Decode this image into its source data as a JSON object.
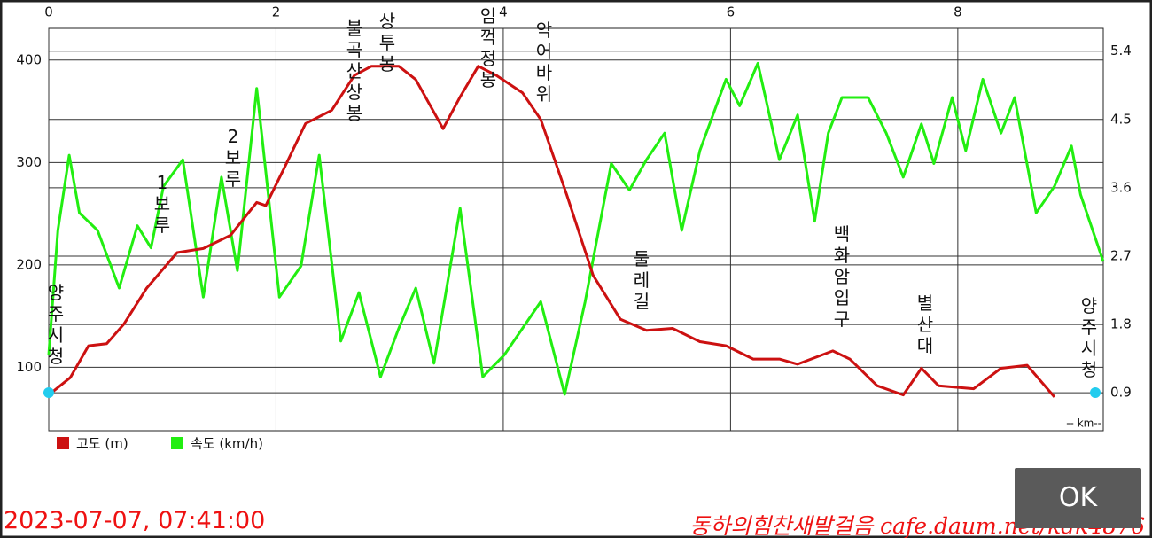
{
  "chart_data": {
    "type": "line",
    "series": [
      {
        "name": "고도 (m)",
        "color": "#cc1111",
        "axis": "y",
        "x": [
          0,
          0.19,
          0.35,
          0.51,
          0.66,
          0.86,
          1.13,
          1.36,
          1.6,
          1.83,
          1.91,
          2.07,
          2.26,
          2.49,
          2.69,
          2.84,
          3.08,
          3.23,
          3.47,
          3.62,
          3.78,
          3.94,
          4.17,
          4.33,
          4.56,
          4.79,
          5.03,
          5.26,
          5.49,
          5.73,
          5.96,
          6.2,
          6.43,
          6.59,
          6.9,
          7.05,
          7.29,
          7.52,
          7.68,
          7.83,
          8.14,
          8.38,
          8.61,
          8.85
        ],
        "values": [
          73,
          90,
          121,
          123,
          142,
          177,
          212,
          216,
          229,
          261,
          258,
          294,
          338,
          351,
          385,
          394,
          394,
          381,
          333,
          364,
          394,
          385,
          368,
          342,
          268,
          190,
          147,
          136,
          138,
          125,
          121,
          108,
          108,
          103,
          116,
          108,
          82,
          73,
          99,
          82,
          79,
          99,
          102,
          71
        ]
      },
      {
        "name": "속도 (km/h)",
        "color": "#22ee11",
        "axis": "y2",
        "x": [
          0,
          0.08,
          0.18,
          0.27,
          0.43,
          0.62,
          0.78,
          0.9,
          1.01,
          1.18,
          1.36,
          1.52,
          1.66,
          1.83,
          2.03,
          2.22,
          2.38,
          2.57,
          2.73,
          2.92,
          3.08,
          3.23,
          3.39,
          3.62,
          3.82,
          4.01,
          4.17,
          4.33,
          4.54,
          4.72,
          4.95,
          5.11,
          5.26,
          5.42,
          5.57,
          5.73,
          5.96,
          6.08,
          6.24,
          6.43,
          6.59,
          6.74,
          6.86,
          6.98,
          7.21,
          7.37,
          7.52,
          7.68,
          7.79,
          7.95,
          8.07,
          8.22,
          8.38,
          8.5,
          8.69,
          8.85,
          9.0,
          9.08,
          9.28
        ],
        "values": [
          1.4,
          3.04,
          4.03,
          3.27,
          3.04,
          2.28,
          3.1,
          2.81,
          3.62,
          3.97,
          2.16,
          3.74,
          2.51,
          4.91,
          2.16,
          2.57,
          4.03,
          1.58,
          2.22,
          1.11,
          1.75,
          2.28,
          1.29,
          3.33,
          1.11,
          1.4,
          1.75,
          2.1,
          0.88,
          2.1,
          3.92,
          3.57,
          3.97,
          4.32,
          3.04,
          4.09,
          5.03,
          4.68,
          5.24,
          3.97,
          4.56,
          3.16,
          4.32,
          4.79,
          4.79,
          4.32,
          3.74,
          4.44,
          3.92,
          4.79,
          4.09,
          5.03,
          4.32,
          4.79,
          3.27,
          3.62,
          4.15,
          3.51,
          2.63
        ]
      }
    ],
    "xlim": [
      0,
      9.28
    ],
    "xticks": [
      0,
      2,
      4,
      6,
      8
    ],
    "x_label": "-- km--",
    "ylim": [
      38,
      431
    ],
    "yticks": [
      100,
      200,
      300,
      400
    ],
    "y2lim": [
      0.4,
      5.7
    ],
    "y2ticks": [
      0.9,
      1.8,
      2.7,
      3.6,
      4.5,
      5.4
    ],
    "grid": true,
    "legend": "bottom-left",
    "annotations": [
      "양주시청",
      "1보루",
      "2보루",
      "불곡산상봉",
      "상투봉",
      "임꺽정봉",
      "악어바위",
      "둘레길",
      "백화암입구",
      "별산대",
      "양주시청"
    ],
    "timestamp": "2023-07-07, 07:41:00",
    "watermark": "동하의힘찬새발걸음 cafe.daum.net/kdk4876",
    "button": "OK"
  }
}
